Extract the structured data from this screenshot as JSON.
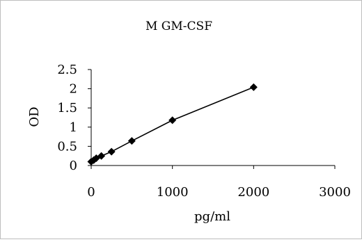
{
  "chart_data": {
    "type": "line",
    "title": "M GM-CSF",
    "xlabel": "pg/ml",
    "ylabel": "OD",
    "xlim": [
      0,
      3000
    ],
    "ylim": [
      0,
      2.5
    ],
    "xticks": [
      "0",
      "1000",
      "2000",
      "3000"
    ],
    "yticks": [
      "0",
      "0.5",
      "1",
      "1.5",
      "2",
      "2.5"
    ],
    "xtick_values": [
      0,
      1000,
      2000,
      3000
    ],
    "ytick_values": [
      0,
      0.5,
      1,
      1.5,
      2,
      2.5
    ],
    "grid": false,
    "legend": "none",
    "marker": "diamond",
    "series": [
      {
        "x": [
          0,
          31.25,
          62.5,
          125,
          250,
          500,
          1000,
          2000
        ],
        "y": [
          0.1,
          0.14,
          0.19,
          0.25,
          0.36,
          0.64,
          1.18,
          2.04
        ]
      }
    ]
  }
}
